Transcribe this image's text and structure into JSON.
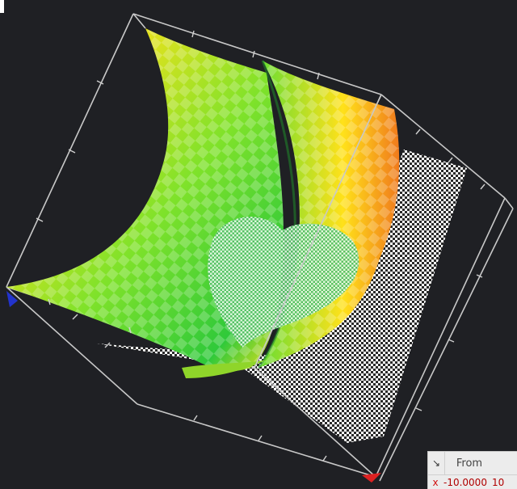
{
  "toolbar": {
    "collapse_icon": "collapse-arrow-icon"
  },
  "range_panel": {
    "header_from": "From",
    "rows": [
      {
        "axis": "x",
        "from": "-10.0000",
        "to": "10"
      }
    ]
  },
  "scene": {
    "surface_colors": [
      "#e8401c",
      "#ffee11",
      "#22cc44"
    ],
    "checker_color": "#ffffff",
    "box_color": "#c8c8c8",
    "origin_marker_color": "#2233cc",
    "end_marker_color": "#dd2222",
    "heart_color": "#d9f5d9"
  }
}
